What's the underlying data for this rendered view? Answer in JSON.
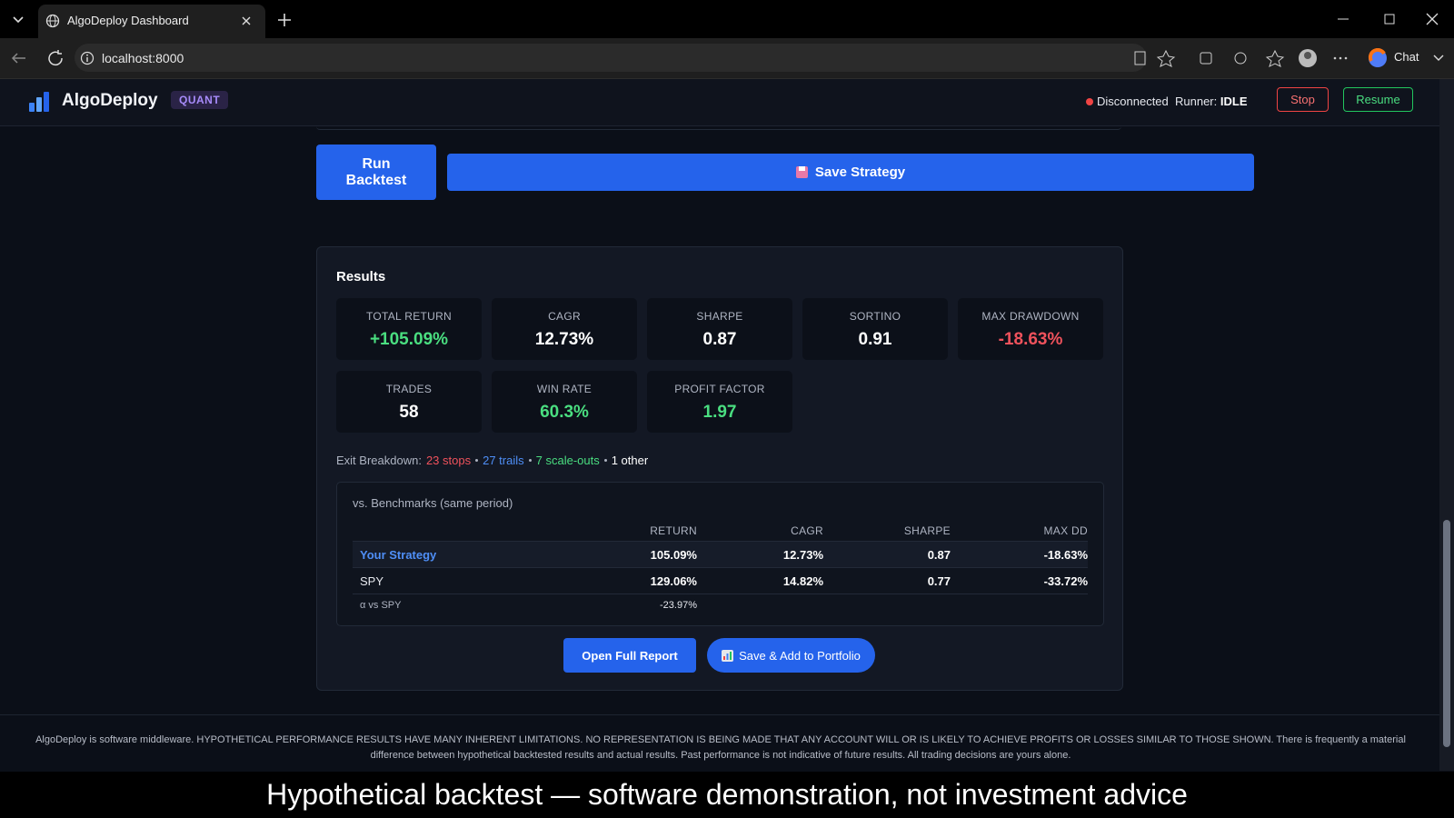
{
  "browser": {
    "tab_title": "AlgoDeploy Dashboard",
    "url": "localhost:8000",
    "chat": "Chat"
  },
  "header": {
    "brand": "AlgoDeploy",
    "badge": "QUANT",
    "status": "Disconnected",
    "runner_label": "Runner:",
    "runner_state": "IDLE",
    "stop": "Stop",
    "resume": "Resume"
  },
  "actions": {
    "run": "Run Backtest",
    "save": "Save Strategy"
  },
  "results": {
    "title": "Results",
    "metrics": [
      {
        "label": "TOTAL RETURN",
        "value": "+105.09%",
        "color": "#4ade80"
      },
      {
        "label": "CAGR",
        "value": "12.73%",
        "color": "#ffffff"
      },
      {
        "label": "SHARPE",
        "value": "0.87",
        "color": "#ffffff"
      },
      {
        "label": "SORTINO",
        "value": "0.91",
        "color": "#ffffff"
      },
      {
        "label": "MAX DRAWDOWN",
        "value": "-18.63%",
        "color": "#f0525c"
      },
      {
        "label": "TRADES",
        "value": "58",
        "color": "#ffffff"
      },
      {
        "label": "WIN RATE",
        "value": "60.3%",
        "color": "#4ade80"
      },
      {
        "label": "PROFIT FACTOR",
        "value": "1.97",
        "color": "#4ade80"
      }
    ],
    "exit_breakdown": {
      "label": "Exit Breakdown:",
      "parts": [
        {
          "text": "23 stops",
          "color": "#f0525c"
        },
        {
          "text": "27 trails",
          "color": "#4f8ff7"
        },
        {
          "text": "7 scale-outs",
          "color": "#4ade80"
        },
        {
          "text": "1 other",
          "color": "#ffffff"
        }
      ]
    },
    "benchmarks": {
      "title": "vs. Benchmarks (same period)",
      "columns": [
        "RETURN",
        "CAGR",
        "SHARPE",
        "MAX DD"
      ],
      "rows": [
        [
          "Your Strategy",
          "105.09%",
          "12.73%",
          "0.87",
          "-18.63%"
        ],
        [
          "SPY",
          "129.06%",
          "14.82%",
          "0.77",
          "-33.72%"
        ]
      ],
      "alpha": {
        "label": "α vs SPY",
        "value": "-23.97%"
      }
    },
    "buttons": {
      "report": "Open Full Report",
      "portfolio": "Save & Add to Portfolio"
    }
  },
  "footer": {
    "disclaimer": "AlgoDeploy is software middleware. HYPOTHETICAL PERFORMANCE RESULTS HAVE MANY INHERENT LIMITATIONS. NO REPRESENTATION IS BEING MADE THAT ANY ACCOUNT WILL OR IS LIKELY TO ACHIEVE PROFITS OR LOSSES SIMILAR TO THOSE SHOWN. There is frequently a material difference between hypothetical backtested results and actual results. Past performance is not indicative of future results. All trading decisions are yours alone."
  },
  "caption": "Hypothetical backtest — software demonstration, not investment advice"
}
